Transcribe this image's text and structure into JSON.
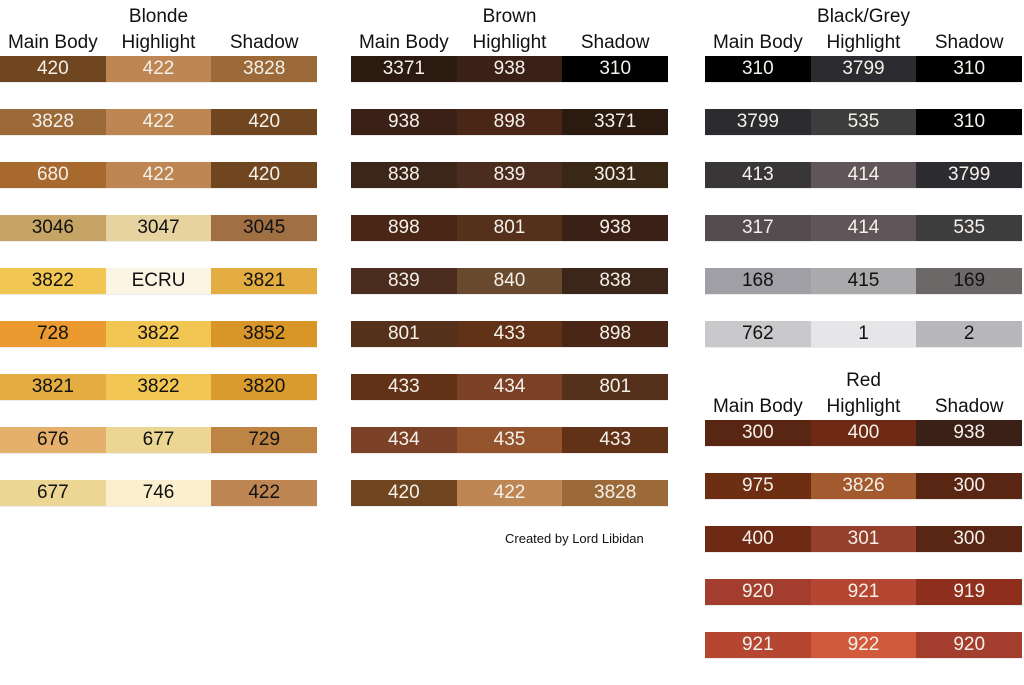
{
  "column_headers": [
    "Main Body",
    "Highlight",
    "Shadow"
  ],
  "credit": "Created by Lord Libidan",
  "groups": [
    {
      "title": "Blonde",
      "rows": [
        [
          {
            "code": "420",
            "color": "#704620",
            "text": "light"
          },
          {
            "code": "422",
            "color": "#bd8653",
            "text": "light"
          },
          {
            "code": "3828",
            "color": "#9b6a38",
            "text": "light"
          }
        ],
        [
          {
            "code": "3828",
            "color": "#9b6a38",
            "text": "light"
          },
          {
            "code": "422",
            "color": "#bd8653",
            "text": "light"
          },
          {
            "code": "420",
            "color": "#704620",
            "text": "light"
          }
        ],
        [
          {
            "code": "680",
            "color": "#a8692e",
            "text": "light"
          },
          {
            "code": "422",
            "color": "#bd8653",
            "text": "light"
          },
          {
            "code": "420",
            "color": "#704620",
            "text": "light"
          }
        ],
        [
          {
            "code": "3046",
            "color": "#c6a465",
            "text": "dark"
          },
          {
            "code": "3047",
            "color": "#e6d3a0",
            "text": "dark"
          },
          {
            "code": "3045",
            "color": "#a06f44",
            "text": "dark"
          }
        ],
        [
          {
            "code": "3822",
            "color": "#f2c652",
            "text": "dark"
          },
          {
            "code": "ECRU",
            "color": "#fdf5e3",
            "text": "dark"
          },
          {
            "code": "3821",
            "color": "#e4ad41",
            "text": "dark"
          }
        ],
        [
          {
            "code": "728",
            "color": "#eb9a2f",
            "text": "dark"
          },
          {
            "code": "3822",
            "color": "#f2c652",
            "text": "dark"
          },
          {
            "code": "3852",
            "color": "#d99628",
            "text": "dark"
          }
        ],
        [
          {
            "code": "3821",
            "color": "#e4ad41",
            "text": "dark"
          },
          {
            "code": "3822",
            "color": "#f2c652",
            "text": "dark"
          },
          {
            "code": "3820",
            "color": "#d99a2e",
            "text": "dark"
          }
        ],
        [
          {
            "code": "676",
            "color": "#e4b06b",
            "text": "dark"
          },
          {
            "code": "677",
            "color": "#ecd693",
            "text": "dark"
          },
          {
            "code": "729",
            "color": "#be8444",
            "text": "dark"
          }
        ],
        [
          {
            "code": "677",
            "color": "#ecd693",
            "text": "dark"
          },
          {
            "code": "746",
            "color": "#fbefcd",
            "text": "dark"
          },
          {
            "code": "422",
            "color": "#bd8653",
            "text": "dark"
          }
        ]
      ]
    },
    {
      "title": "Brown",
      "rows": [
        [
          {
            "code": "3371",
            "color": "#2b1a10",
            "text": "light"
          },
          {
            "code": "938",
            "color": "#3a2016",
            "text": "light"
          },
          {
            "code": "310",
            "color": "#000000",
            "text": "light"
          }
        ],
        [
          {
            "code": "938",
            "color": "#3a2016",
            "text": "light"
          },
          {
            "code": "898",
            "color": "#4a2616",
            "text": "light"
          },
          {
            "code": "3371",
            "color": "#2b1a10",
            "text": "light"
          }
        ],
        [
          {
            "code": "838",
            "color": "#3c2519",
            "text": "light"
          },
          {
            "code": "839",
            "color": "#4b2d20",
            "text": "light"
          },
          {
            "code": "3031",
            "color": "#3a2816",
            "text": "light"
          }
        ],
        [
          {
            "code": "898",
            "color": "#4a2616",
            "text": "light"
          },
          {
            "code": "801",
            "color": "#55301a",
            "text": "light"
          },
          {
            "code": "938",
            "color": "#3a2016",
            "text": "light"
          }
        ],
        [
          {
            "code": "839",
            "color": "#4b2d20",
            "text": "light"
          },
          {
            "code": "840",
            "color": "#6a4a2e",
            "text": "light"
          },
          {
            "code": "838",
            "color": "#3c2519",
            "text": "light"
          }
        ],
        [
          {
            "code": "801",
            "color": "#55301a",
            "text": "light"
          },
          {
            "code": "433",
            "color": "#623218",
            "text": "light"
          },
          {
            "code": "898",
            "color": "#4a2616",
            "text": "light"
          }
        ],
        [
          {
            "code": "433",
            "color": "#623218",
            "text": "light"
          },
          {
            "code": "434",
            "color": "#7c4228",
            "text": "light"
          },
          {
            "code": "801",
            "color": "#55301a",
            "text": "light"
          }
        ],
        [
          {
            "code": "434",
            "color": "#7c4228",
            "text": "light"
          },
          {
            "code": "435",
            "color": "#93532c",
            "text": "light"
          },
          {
            "code": "433",
            "color": "#623218",
            "text": "light"
          }
        ],
        [
          {
            "code": "420",
            "color": "#704620",
            "text": "light"
          },
          {
            "code": "422",
            "color": "#bd8653",
            "text": "light"
          },
          {
            "code": "3828",
            "color": "#9b6a38",
            "text": "light"
          }
        ]
      ]
    },
    {
      "title": "Black/Grey",
      "rows": [
        [
          {
            "code": "310",
            "color": "#000000",
            "text": "light"
          },
          {
            "code": "3799",
            "color": "#2c2b2f",
            "text": "light"
          },
          {
            "code": "310",
            "color": "#000000",
            "text": "light"
          }
        ],
        [
          {
            "code": "3799",
            "color": "#2c2b2f",
            "text": "light"
          },
          {
            "code": "535",
            "color": "#3e3d3d",
            "text": "light"
          },
          {
            "code": "310",
            "color": "#000000",
            "text": "light"
          }
        ],
        [
          {
            "code": "413",
            "color": "#383637",
            "text": "light"
          },
          {
            "code": "414",
            "color": "#605559",
            "text": "light"
          },
          {
            "code": "3799",
            "color": "#2c2b2f",
            "text": "light"
          }
        ],
        [
          {
            "code": "317",
            "color": "#554c50",
            "text": "light"
          },
          {
            "code": "414",
            "color": "#605559",
            "text": "light"
          },
          {
            "code": "535",
            "color": "#3e3d3d",
            "text": "light"
          }
        ],
        [
          {
            "code": "168",
            "color": "#a09fa6",
            "text": "dark"
          },
          {
            "code": "415",
            "color": "#aaaaad",
            "text": "dark"
          },
          {
            "code": "169",
            "color": "#6c6868",
            "text": "dark"
          }
        ],
        [
          {
            "code": "762",
            "color": "#c9c8cb",
            "text": "dark"
          },
          {
            "code": "1",
            "color": "#e6e6e8",
            "text": "dark"
          },
          {
            "code": "2",
            "color": "#b8b7bc",
            "text": "dark"
          }
        ]
      ]
    },
    {
      "title": "Red",
      "rows": [
        [
          {
            "code": "300",
            "color": "#5a2614",
            "text": "light"
          },
          {
            "code": "400",
            "color": "#6e2a15",
            "text": "light"
          },
          {
            "code": "938",
            "color": "#3a2016",
            "text": "light"
          }
        ],
        [
          {
            "code": "975",
            "color": "#6e2e12",
            "text": "light"
          },
          {
            "code": "3826",
            "color": "#a35a2e",
            "text": "light"
          },
          {
            "code": "300",
            "color": "#5a2614",
            "text": "light"
          }
        ],
        [
          {
            "code": "400",
            "color": "#6e2a15",
            "text": "light"
          },
          {
            "code": "301",
            "color": "#95402c",
            "text": "light"
          },
          {
            "code": "300",
            "color": "#5a2614",
            "text": "light"
          }
        ],
        [
          {
            "code": "920",
            "color": "#a33e2e",
            "text": "light"
          },
          {
            "code": "921",
            "color": "#b54732",
            "text": "light"
          },
          {
            "code": "919",
            "color": "#8e2e1c",
            "text": "light"
          }
        ],
        [
          {
            "code": "921",
            "color": "#b54732",
            "text": "light"
          },
          {
            "code": "922",
            "color": "#d25a3c",
            "text": "light"
          },
          {
            "code": "920",
            "color": "#a33e2e",
            "text": "light"
          }
        ]
      ]
    }
  ]
}
